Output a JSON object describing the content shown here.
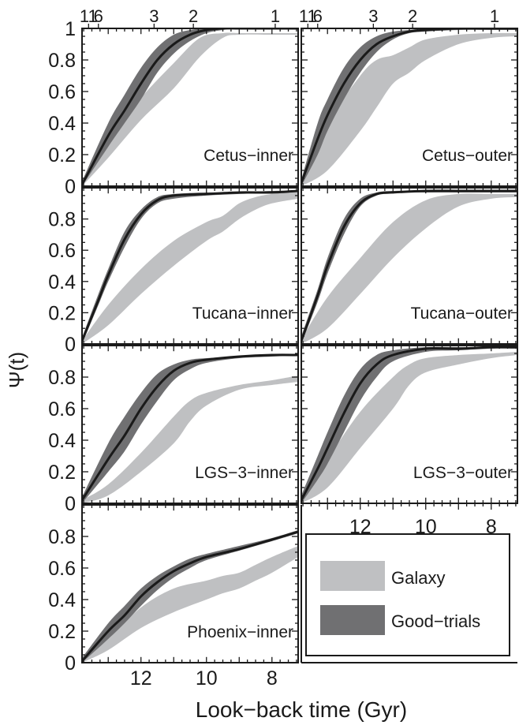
{
  "figure": {
    "ylabel": "Ψ(t)",
    "xlabel": "Look−back time (Gyr)",
    "top_axis_ticks": [
      {
        "value": 13.6,
        "label": "11"
      },
      {
        "value": 13.3,
        "label": "6"
      },
      {
        "value": 11.6,
        "label": "3"
      },
      {
        "value": 10.4,
        "label": "2"
      },
      {
        "value": 7.9,
        "label": "1"
      }
    ],
    "legend": [
      {
        "label": "Galaxy",
        "color": "#bfc0c2"
      },
      {
        "label": "Good−trials",
        "color": "#707072"
      }
    ],
    "colors": {
      "galaxy_band": "#bfc0c2",
      "trials_band": "#707072",
      "median_line": "#1a1a1a",
      "axis": "#1a1a1a"
    }
  },
  "chart_data": {
    "type": "area",
    "shared": {
      "xlim": [
        13.8,
        7.2
      ],
      "ylim": [
        0,
        1
      ],
      "x_ticks": [
        12,
        10,
        8
      ],
      "x_tick_labels": [
        "12",
        "10",
        "8"
      ],
      "y_ticks": [
        0,
        0.2,
        0.4,
        0.6,
        0.8,
        1
      ],
      "y_tick_labels": [
        "0",
        "0.2",
        "0.4",
        "0.6",
        "0.8",
        "1"
      ],
      "x_axis_inverted": true
    },
    "panels": [
      {
        "label": "Cetus−inner",
        "series": [
          {
            "name": "Galaxy",
            "x": [
              13.8,
              13.0,
              12.0,
              11.0,
              10.2,
              9.5,
              9.0,
              8.0,
              7.2
            ],
            "low": [
              0.0,
              0.18,
              0.42,
              0.62,
              0.82,
              0.94,
              0.96,
              0.96,
              0.96
            ],
            "high": [
              0.02,
              0.3,
              0.56,
              0.78,
              0.94,
              0.97,
              0.97,
              0.97,
              0.97
            ]
          },
          {
            "name": "Good−trials",
            "x": [
              13.8,
              13.0,
              12.5,
              12.0,
              11.5,
              11.0,
              10.5,
              10.0,
              9.5,
              9.0,
              8.0,
              7.2
            ],
            "low": [
              0.0,
              0.25,
              0.4,
              0.55,
              0.72,
              0.84,
              0.92,
              0.97,
              0.99,
              1.0,
              1.0,
              1.0
            ],
            "high": [
              0.03,
              0.4,
              0.58,
              0.75,
              0.88,
              0.96,
              0.99,
              1.0,
              1.0,
              1.0,
              1.0,
              1.0
            ],
            "median": [
              0.01,
              0.32,
              0.48,
              0.65,
              0.8,
              0.9,
              0.96,
              0.99,
              1.0,
              1.0,
              1.0,
              1.0
            ]
          }
        ]
      },
      {
        "label": "Cetus−outer",
        "series": [
          {
            "name": "Galaxy",
            "x": [
              13.8,
              13.0,
              12.0,
              11.5,
              11.0,
              10.5,
              10.0,
              9.0,
              8.0,
              7.2
            ],
            "low": [
              0.0,
              0.1,
              0.35,
              0.5,
              0.65,
              0.72,
              0.8,
              0.9,
              0.94,
              0.95
            ],
            "high": [
              0.03,
              0.4,
              0.7,
              0.8,
              0.83,
              0.88,
              0.93,
              0.96,
              0.97,
              0.97
            ]
          },
          {
            "name": "Good−trials",
            "x": [
              13.8,
              13.3,
              13.0,
              12.5,
              12.0,
              11.5,
              11.0,
              10.5,
              10.0,
              9.0,
              8.0,
              7.2
            ],
            "low": [
              0.0,
              0.2,
              0.35,
              0.55,
              0.72,
              0.85,
              0.93,
              0.97,
              0.98,
              0.99,
              0.99,
              0.99
            ],
            "high": [
              0.04,
              0.4,
              0.55,
              0.75,
              0.88,
              0.95,
              0.98,
              0.99,
              1.0,
              1.0,
              1.0,
              1.0
            ],
            "median": [
              0.02,
              0.3,
              0.45,
              0.65,
              0.8,
              0.9,
              0.95,
              0.98,
              0.99,
              1.0,
              1.0,
              1.0
            ]
          }
        ]
      },
      {
        "label": "Tucana−inner",
        "series": [
          {
            "name": "Galaxy",
            "x": [
              13.8,
              13.0,
              12.0,
              11.0,
              10.0,
              9.5,
              9.0,
              8.5,
              8.0,
              7.2
            ],
            "low": [
              0.0,
              0.12,
              0.32,
              0.5,
              0.66,
              0.72,
              0.8,
              0.86,
              0.9,
              0.93
            ],
            "high": [
              0.02,
              0.25,
              0.48,
              0.66,
              0.78,
              0.82,
              0.9,
              0.94,
              0.96,
              0.98
            ]
          },
          {
            "name": "Good−trials",
            "x": [
              13.8,
              13.3,
              13.0,
              12.5,
              12.0,
              11.5,
              11.0,
              10.0,
              9.0,
              8.0,
              7.2
            ],
            "low": [
              0.0,
              0.25,
              0.4,
              0.62,
              0.8,
              0.9,
              0.93,
              0.95,
              0.96,
              0.97,
              0.98
            ],
            "high": [
              0.04,
              0.32,
              0.48,
              0.72,
              0.86,
              0.94,
              0.96,
              0.97,
              0.97,
              0.98,
              0.98
            ],
            "median": [
              0.02,
              0.28,
              0.44,
              0.67,
              0.83,
              0.92,
              0.95,
              0.96,
              0.97,
              0.97,
              0.98
            ]
          }
        ]
      },
      {
        "label": "Tucana−outer",
        "series": [
          {
            "name": "Galaxy",
            "x": [
              13.8,
              13.0,
              12.0,
              11.0,
              10.0,
              9.0,
              8.0,
              7.2
            ],
            "low": [
              0.0,
              0.1,
              0.32,
              0.55,
              0.74,
              0.88,
              0.93,
              0.94
            ],
            "high": [
              0.03,
              0.3,
              0.55,
              0.78,
              0.92,
              0.96,
              0.96,
              0.96
            ]
          },
          {
            "name": "Good−trials",
            "x": [
              13.8,
              13.3,
              13.0,
              12.5,
              12.0,
              11.5,
              11.0,
              10.0,
              9.0,
              8.0,
              7.2
            ],
            "low": [
              0.0,
              0.27,
              0.45,
              0.7,
              0.88,
              0.95,
              0.97,
              0.97,
              0.97,
              0.97,
              0.97
            ],
            "high": [
              0.05,
              0.35,
              0.55,
              0.8,
              0.93,
              0.97,
              0.98,
              0.98,
              0.98,
              0.98,
              0.98
            ],
            "median": [
              0.02,
              0.31,
              0.5,
              0.75,
              0.9,
              0.96,
              0.97,
              0.98,
              0.98,
              0.98,
              0.98
            ]
          }
        ]
      },
      {
        "label": "LGS−3−inner",
        "series": [
          {
            "name": "Galaxy",
            "x": [
              13.8,
              13.0,
              12.0,
              11.0,
              10.5,
              10.0,
              9.0,
              8.0,
              7.2
            ],
            "low": [
              0.0,
              0.05,
              0.2,
              0.38,
              0.52,
              0.62,
              0.72,
              0.75,
              0.77
            ],
            "high": [
              0.02,
              0.12,
              0.32,
              0.55,
              0.65,
              0.7,
              0.75,
              0.78,
              0.81
            ]
          },
          {
            "name": "Good−trials",
            "x": [
              13.8,
              13.0,
              12.5,
              12.0,
              11.5,
              11.0,
              10.5,
              10.0,
              9.0,
              8.0,
              7.2
            ],
            "low": [
              0.0,
              0.2,
              0.33,
              0.5,
              0.65,
              0.78,
              0.85,
              0.89,
              0.92,
              0.93,
              0.94
            ],
            "high": [
              0.04,
              0.38,
              0.55,
              0.7,
              0.82,
              0.88,
              0.91,
              0.92,
              0.93,
              0.94,
              0.94
            ],
            "median": [
              0.02,
              0.28,
              0.43,
              0.6,
              0.74,
              0.84,
              0.89,
              0.91,
              0.93,
              0.94,
              0.94
            ]
          }
        ]
      },
      {
        "label": "LGS−3−outer",
        "series": [
          {
            "name": "Galaxy",
            "x": [
              13.8,
              13.0,
              12.0,
              11.0,
              10.5,
              10.0,
              9.0,
              8.0,
              7.2
            ],
            "low": [
              0.0,
              0.1,
              0.35,
              0.6,
              0.75,
              0.83,
              0.88,
              0.92,
              0.94
            ],
            "high": [
              0.03,
              0.28,
              0.58,
              0.8,
              0.88,
              0.92,
              0.94,
              0.95,
              0.96
            ]
          },
          {
            "name": "Good−trials",
            "x": [
              13.8,
              13.3,
              13.0,
              12.5,
              12.0,
              11.5,
              11.0,
              10.0,
              9.0,
              8.0,
              7.2
            ],
            "low": [
              0.0,
              0.15,
              0.25,
              0.45,
              0.65,
              0.8,
              0.9,
              0.96,
              0.97,
              0.98,
              0.98
            ],
            "high": [
              0.05,
              0.3,
              0.45,
              0.68,
              0.85,
              0.94,
              0.97,
              0.99,
              0.99,
              0.99,
              0.99
            ],
            "median": [
              0.02,
              0.22,
              0.35,
              0.57,
              0.76,
              0.88,
              0.94,
              0.98,
              0.98,
              0.99,
              0.99
            ]
          }
        ]
      },
      {
        "label": "Phoenix−inner",
        "series": [
          {
            "name": "Galaxy",
            "x": [
              13.8,
              13.0,
              12.0,
              11.0,
              10.0,
              9.5,
              9.0,
              8.5,
              8.0,
              7.2
            ],
            "low": [
              0.0,
              0.08,
              0.22,
              0.32,
              0.4,
              0.44,
              0.47,
              0.52,
              0.57,
              0.67
            ],
            "high": [
              0.02,
              0.15,
              0.35,
              0.47,
              0.52,
              0.55,
              0.57,
              0.62,
              0.67,
              0.74
            ]
          },
          {
            "name": "Good−trials",
            "x": [
              13.8,
              13.0,
              12.5,
              12.0,
              11.5,
              11.0,
              10.5,
              10.0,
              9.0,
              8.0,
              7.2
            ],
            "low": [
              0.0,
              0.15,
              0.25,
              0.36,
              0.46,
              0.54,
              0.6,
              0.65,
              0.71,
              0.77,
              0.82
            ],
            "high": [
              0.03,
              0.25,
              0.36,
              0.47,
              0.55,
              0.61,
              0.66,
              0.69,
              0.74,
              0.79,
              0.84
            ],
            "median": [
              0.01,
              0.2,
              0.3,
              0.42,
              0.51,
              0.58,
              0.63,
              0.67,
              0.72,
              0.78,
              0.83
            ]
          }
        ]
      }
    ]
  }
}
